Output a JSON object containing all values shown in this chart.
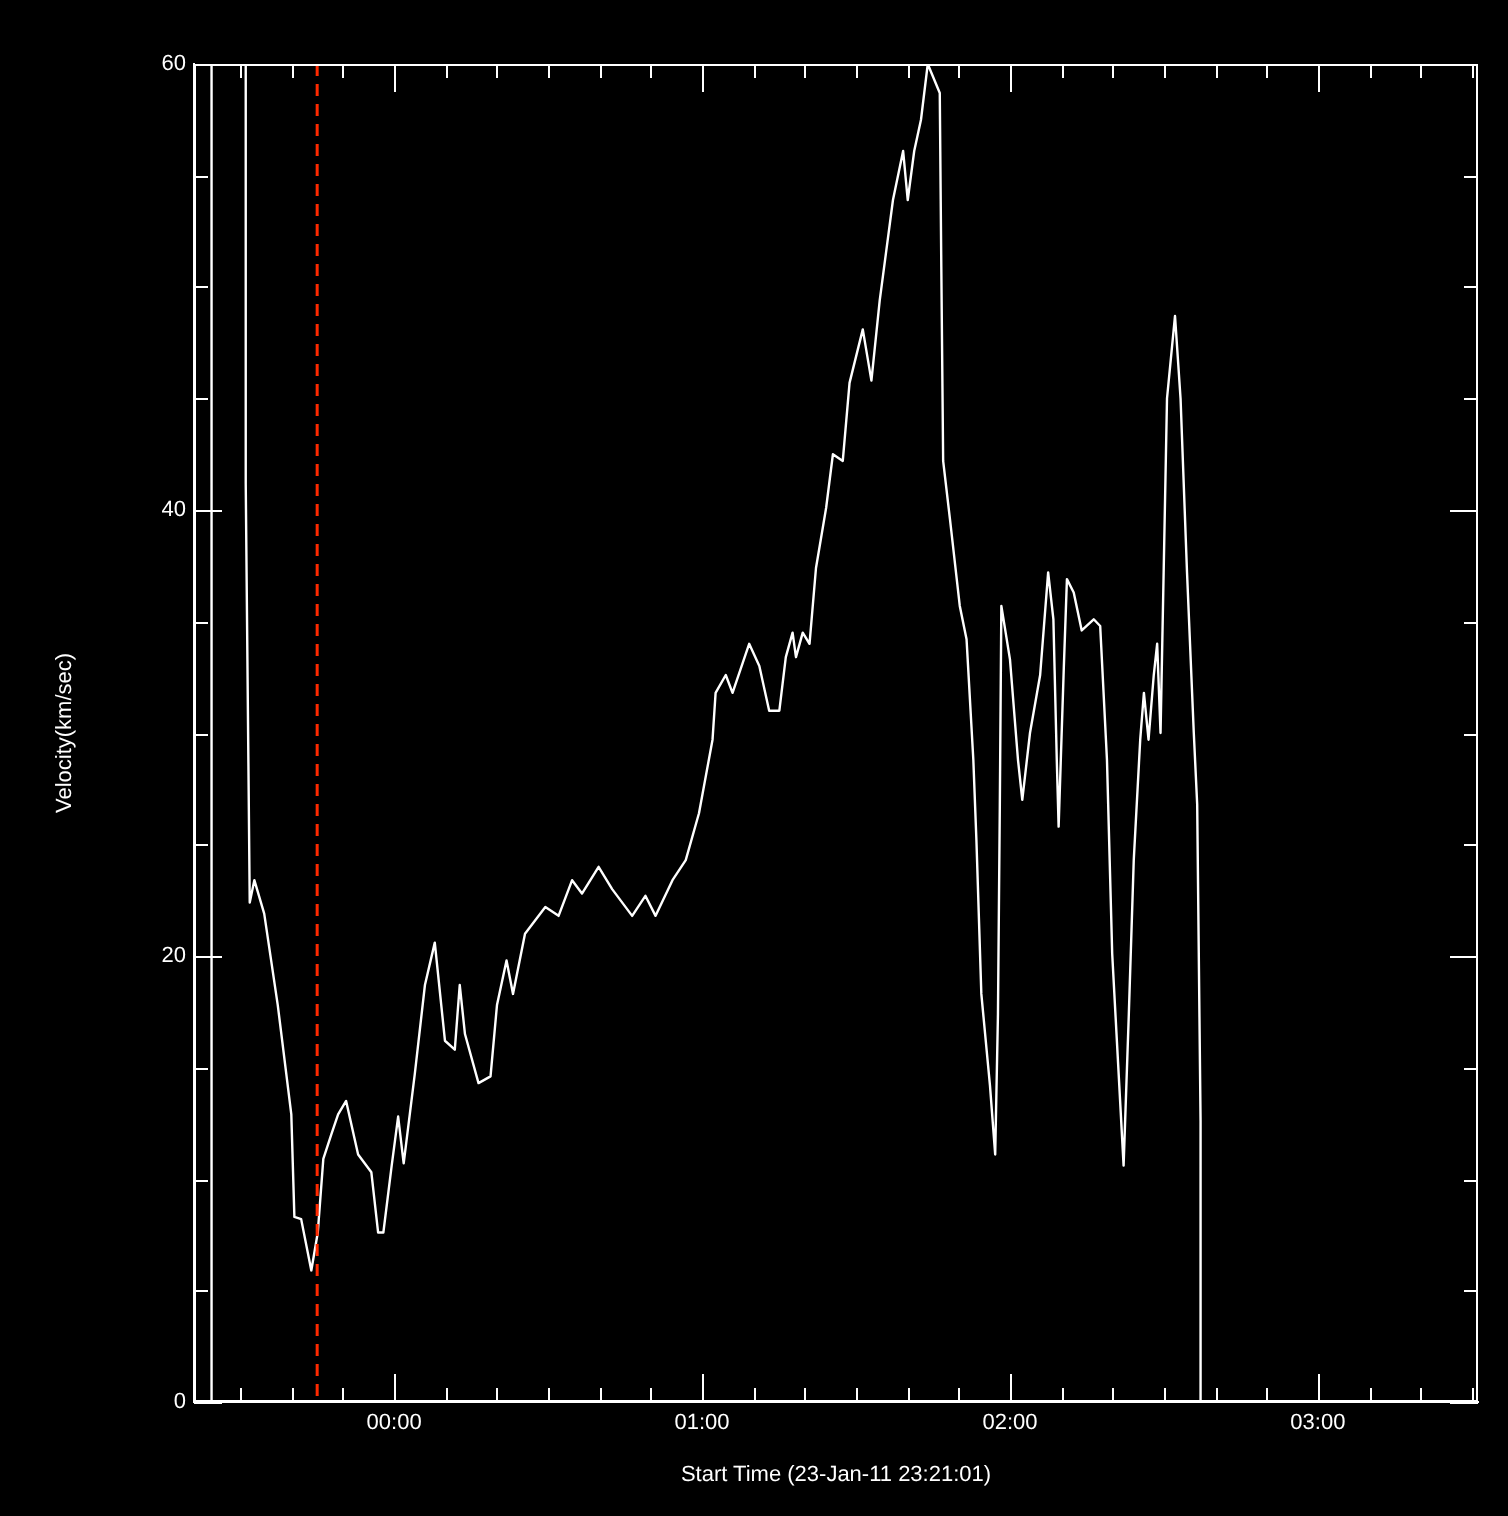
{
  "chart_data": {
    "type": "line",
    "xlabel": "Start Time (23-Jan-11 23:21:01)",
    "ylabel": "Velocity(km/sec)",
    "color": "#ffffff",
    "x": [
      -0.593,
      -0.593,
      -0.54,
      -0.482,
      -0.482,
      -0.469,
      -0.454,
      -0.422,
      -0.378,
      -0.334,
      -0.324,
      -0.302,
      -0.269,
      -0.248,
      -0.23,
      -0.204,
      -0.182,
      -0.156,
      -0.117,
      -0.074,
      -0.052,
      -0.035,
      -0.008,
      0.013,
      0.031,
      0.067,
      0.1,
      0.132,
      0.165,
      0.197,
      0.213,
      0.23,
      0.274,
      0.313,
      0.334,
      0.365,
      0.386,
      0.425,
      0.491,
      0.534,
      0.578,
      0.61,
      0.664,
      0.708,
      0.773,
      0.816,
      0.849,
      0.904,
      0.947,
      0.99,
      1.034,
      1.044,
      1.077,
      1.099,
      1.153,
      1.186,
      1.218,
      1.251,
      1.272,
      1.294,
      1.305,
      1.327,
      1.349,
      1.37,
      1.403,
      1.425,
      1.457,
      1.479,
      1.522,
      1.55,
      1.577,
      1.62,
      1.653,
      1.668,
      1.689,
      1.711,
      1.733,
      1.772,
      1.777,
      1.783,
      1.805,
      1.837,
      1.859,
      1.881,
      1.891,
      1.907,
      1.935,
      1.952,
      1.961,
      1.967,
      1.972,
      2.0,
      2.026,
      2.04,
      2.065,
      2.098,
      2.124,
      2.141,
      2.152,
      2.158,
      2.175,
      2.185,
      2.207,
      2.233,
      2.272,
      2.293,
      2.315,
      2.332,
      2.369,
      2.386,
      2.402,
      2.423,
      2.435,
      2.45,
      2.467,
      2.478,
      2.489,
      2.51,
      2.536,
      2.554,
      2.575,
      2.597,
      2.608,
      2.619,
      2.619
    ],
    "values": [
      0,
      60,
      null,
      60,
      41.2,
      22.4,
      23.4,
      21.9,
      17.8,
      12.9,
      8.3,
      8.2,
      5.9,
      7.6,
      10.9,
      12.0,
      12.9,
      13.5,
      11.1,
      10.3,
      7.6,
      7.6,
      10.6,
      12.8,
      10.7,
      14.7,
      18.7,
      20.6,
      16.2,
      15.8,
      18.7,
      16.5,
      14.3,
      14.6,
      17.8,
      19.8,
      18.3,
      21.0,
      22.2,
      21.8,
      23.4,
      22.8,
      24.0,
      23.0,
      21.8,
      22.7,
      21.8,
      23.4,
      24.3,
      26.4,
      29.7,
      31.8,
      32.6,
      31.8,
      34.0,
      33.0,
      31.0,
      31.0,
      33.4,
      34.5,
      33.4,
      34.5,
      34.0,
      37.4,
      40.1,
      42.5,
      42.2,
      45.7,
      48.1,
      45.8,
      49.4,
      53.9,
      56.1,
      53.9,
      56.1,
      57.5,
      60,
      58.7,
      50.9,
      42.2,
      39.6,
      35.7,
      34.2,
      28.8,
      25.2,
      18.3,
      14.2,
      11.1,
      17.4,
      26.7,
      35.7,
      33.3,
      28.8,
      27.0,
      30.0,
      32.6,
      37.2,
      35.1,
      28.8,
      25.8,
      33.0,
      36.9,
      36.3,
      34.6,
      35.1,
      34.8,
      28.8,
      20.1,
      10.6,
      17.4,
      24.3,
      29.7,
      31.8,
      29.7,
      32.6,
      34.0,
      30.0,
      45.0,
      48.7,
      45.0,
      37.2,
      30.0,
      26.8,
      12.6,
      0
    ],
    "xlim": [
      -0.65,
      3.52
    ],
    "xticks": [
      {
        "value": -0.5,
        "label": null
      },
      {
        "value": -0.333,
        "label": null
      },
      {
        "value": -0.167,
        "label": null
      },
      {
        "value": 0,
        "label": "00:00"
      },
      {
        "value": 0.167,
        "label": null
      },
      {
        "value": 0.333,
        "label": null
      },
      {
        "value": 0.5,
        "label": null
      },
      {
        "value": 0.667,
        "label": null
      },
      {
        "value": 0.833,
        "label": null
      },
      {
        "value": 1,
        "label": "01:00"
      },
      {
        "value": 1.167,
        "label": null
      },
      {
        "value": 1.333,
        "label": null
      },
      {
        "value": 1.5,
        "label": null
      },
      {
        "value": 1.667,
        "label": null
      },
      {
        "value": 1.833,
        "label": null
      },
      {
        "value": 2,
        "label": "02:00"
      },
      {
        "value": 2.167,
        "label": null
      },
      {
        "value": 2.333,
        "label": null
      },
      {
        "value": 2.5,
        "label": null
      },
      {
        "value": 2.667,
        "label": null
      },
      {
        "value": 2.833,
        "label": null
      },
      {
        "value": 3,
        "label": "03:00"
      },
      {
        "value": 3.167,
        "label": null
      },
      {
        "value": 3.333,
        "label": null
      },
      {
        "value": 3.5,
        "label": null
      }
    ],
    "ylim": [
      0,
      60
    ],
    "yticks": [
      0,
      {
        "value": 5,
        "label": null
      },
      {
        "value": 10,
        "label": null
      },
      {
        "value": 15,
        "label": null
      },
      20,
      {
        "value": 25,
        "label": null
      },
      {
        "value": 30,
        "label": null
      },
      {
        "value": 35,
        "label": null
      },
      40,
      {
        "value": 45,
        "label": null
      },
      {
        "value": 50,
        "label": null
      },
      {
        "value": 55,
        "label": null
      },
      60
    ],
    "ref_lines": [
      {
        "axis": "x",
        "value": -0.25,
        "color": "#ff2a00",
        "line_style": "dashed"
      }
    ]
  }
}
